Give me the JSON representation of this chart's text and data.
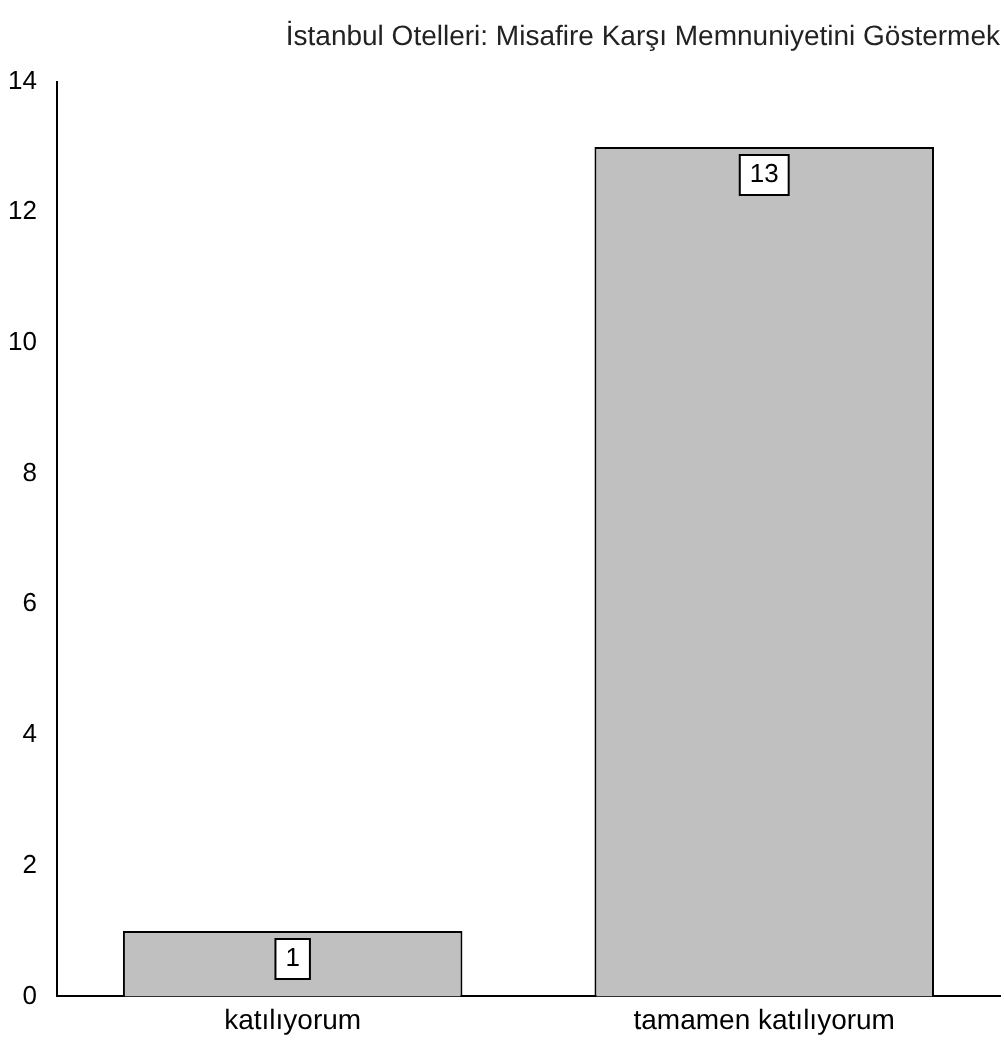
{
  "chart_data": {
    "type": "bar",
    "title": "İstanbul Otelleri: Misafire Karşı Memnuniyetini Göstermek",
    "categories": [
      "katılıyorum",
      "tamamen katılıyorum"
    ],
    "values": [
      1,
      13
    ],
    "color": "#c0c0c0",
    "ylim": [
      0,
      14
    ],
    "yticks": [
      0,
      2,
      4,
      6,
      8,
      10,
      12,
      14
    ],
    "grid": false,
    "legend": false,
    "data_labels": true
  }
}
